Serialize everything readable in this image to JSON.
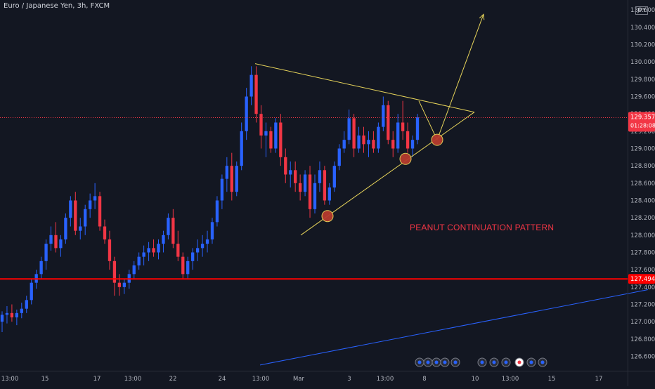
{
  "header": {
    "symbol_title": "Euro / Japanese Yen, 3h, FXCM",
    "currency_badge": "JPY"
  },
  "annotations": {
    "pattern_label": "PEANUT CONTINUATION PATTERN"
  },
  "price_axis": {
    "current_price": "129.357",
    "countdown": "01:28:08",
    "support_price": "127.494"
  },
  "colors": {
    "background": "#131722",
    "up_candle": "#2962ff",
    "down_candle": "#f23645",
    "support_line": "#ff0000",
    "trendline": "#e6d35a",
    "long_trendline": "#2962ff",
    "label_text": "#f23645",
    "marker_fill": "#b53a2e"
  },
  "chart_data": {
    "type": "candlestick",
    "title": "Euro / Japanese Yen, 3h, FXCM",
    "ylim": [
      126.45,
      130.65
    ],
    "y_ticks": [
      126.6,
      126.8,
      127.0,
      127.2,
      127.4,
      127.6,
      127.8,
      128.0,
      128.2,
      128.4,
      128.6,
      128.8,
      129.0,
      129.2,
      129.4,
      129.6,
      129.8,
      130.0,
      130.2,
      130.4,
      130.6
    ],
    "x_tick_labels": [
      "13:00",
      "15",
      "17",
      "13:00",
      "22",
      "24",
      "13:00",
      "Mar",
      "3",
      "13:00",
      "8",
      "10",
      "13:00",
      "15",
      "17"
    ],
    "current_price": 129.357,
    "horizontal_levels": [
      {
        "price": 127.494,
        "label": "127.494"
      }
    ],
    "pattern_label": "PEANUT CONTINUATION PATTERN",
    "ohlc": [
      [
        127.0,
        127.12,
        126.88,
        127.08
      ],
      [
        127.08,
        127.18,
        126.98,
        127.1
      ],
      [
        127.1,
        127.2,
        127.0,
        127.05
      ],
      [
        127.05,
        127.14,
        126.96,
        127.1
      ],
      [
        127.1,
        127.22,
        127.04,
        127.15
      ],
      [
        127.15,
        127.3,
        127.1,
        127.25
      ],
      [
        127.25,
        127.5,
        127.2,
        127.45
      ],
      [
        127.45,
        127.6,
        127.38,
        127.55
      ],
      [
        127.55,
        127.75,
        127.5,
        127.7
      ],
      [
        127.7,
        127.95,
        127.6,
        127.9
      ],
      [
        127.9,
        128.1,
        127.82,
        128.0
      ],
      [
        128.0,
        128.15,
        127.8,
        127.85
      ],
      [
        127.85,
        128.0,
        127.75,
        127.95
      ],
      [
        127.95,
        128.25,
        127.9,
        128.2
      ],
      [
        128.2,
        128.45,
        128.1,
        128.4
      ],
      [
        128.4,
        128.5,
        128.0,
        128.05
      ],
      [
        128.05,
        128.2,
        127.95,
        128.1
      ],
      [
        128.1,
        128.35,
        128.0,
        128.3
      ],
      [
        128.3,
        128.48,
        128.2,
        128.4
      ],
      [
        128.4,
        128.6,
        128.3,
        128.45
      ],
      [
        128.45,
        128.5,
        128.05,
        128.1
      ],
      [
        128.1,
        128.18,
        127.9,
        127.95
      ],
      [
        127.95,
        128.05,
        127.6,
        127.7
      ],
      [
        127.7,
        127.75,
        127.3,
        127.45
      ],
      [
        127.45,
        127.55,
        127.3,
        127.4
      ],
      [
        127.4,
        127.5,
        127.32,
        127.45
      ],
      [
        127.45,
        127.6,
        127.38,
        127.55
      ],
      [
        127.55,
        127.7,
        127.5,
        127.65
      ],
      [
        127.65,
        127.8,
        127.6,
        127.75
      ],
      [
        127.75,
        127.88,
        127.65,
        127.8
      ],
      [
        127.8,
        127.92,
        127.7,
        127.85
      ],
      [
        127.85,
        127.95,
        127.75,
        127.8
      ],
      [
        127.8,
        127.95,
        127.72,
        127.9
      ],
      [
        127.9,
        128.05,
        127.8,
        128.0
      ],
      [
        128.0,
        128.25,
        127.95,
        128.2
      ],
      [
        128.2,
        128.3,
        127.85,
        127.9
      ],
      [
        127.9,
        128.05,
        127.7,
        127.75
      ],
      [
        127.75,
        127.8,
        127.5,
        127.55
      ],
      [
        127.55,
        127.75,
        127.5,
        127.7
      ],
      [
        127.7,
        127.85,
        127.6,
        127.8
      ],
      [
        127.8,
        127.95,
        127.7,
        127.85
      ],
      [
        127.85,
        128.0,
        127.75,
        127.9
      ],
      [
        127.9,
        128.05,
        127.8,
        127.95
      ],
      [
        127.95,
        128.2,
        127.9,
        128.15
      ],
      [
        128.15,
        128.45,
        128.1,
        128.4
      ],
      [
        128.4,
        128.7,
        128.3,
        128.65
      ],
      [
        128.65,
        128.9,
        128.5,
        128.8
      ],
      [
        128.8,
        128.95,
        128.4,
        128.5
      ],
      [
        128.5,
        128.85,
        128.45,
        128.8
      ],
      [
        128.8,
        129.3,
        128.75,
        129.2
      ],
      [
        129.2,
        129.7,
        129.1,
        129.6
      ],
      [
        129.6,
        129.95,
        129.5,
        129.85
      ],
      [
        129.85,
        129.95,
        129.3,
        129.4
      ],
      [
        129.4,
        129.5,
        129.0,
        129.15
      ],
      [
        129.15,
        129.3,
        128.9,
        129.2
      ],
      [
        129.2,
        129.25,
        128.95,
        129.0
      ],
      [
        129.0,
        129.35,
        128.95,
        129.3
      ],
      [
        129.3,
        129.4,
        128.8,
        128.9
      ],
      [
        128.9,
        129.0,
        128.6,
        128.7
      ],
      [
        128.7,
        128.85,
        128.55,
        128.75
      ],
      [
        128.75,
        128.85,
        128.5,
        128.6
      ],
      [
        128.6,
        128.7,
        128.4,
        128.5
      ],
      [
        128.5,
        128.75,
        128.45,
        128.7
      ],
      [
        128.7,
        128.8,
        128.2,
        128.3
      ],
      [
        128.3,
        128.7,
        128.25,
        128.6
      ],
      [
        128.6,
        128.85,
        128.5,
        128.75
      ],
      [
        128.75,
        128.8,
        128.35,
        128.4
      ],
      [
        128.4,
        128.6,
        128.35,
        128.55
      ],
      [
        128.55,
        128.85,
        128.5,
        128.8
      ],
      [
        128.8,
        129.05,
        128.75,
        129.0
      ],
      [
        129.0,
        129.2,
        128.95,
        129.1
      ],
      [
        129.1,
        129.45,
        129.05,
        129.35
      ],
      [
        129.35,
        129.4,
        128.9,
        129.0
      ],
      [
        129.0,
        129.25,
        128.95,
        129.15
      ],
      [
        129.15,
        129.25,
        128.95,
        129.05
      ],
      [
        129.05,
        129.2,
        128.9,
        129.1
      ],
      [
        129.1,
        129.2,
        128.95,
        129.0
      ],
      [
        129.0,
        129.3,
        128.95,
        129.25
      ],
      [
        129.25,
        129.6,
        129.2,
        129.5
      ],
      [
        129.5,
        129.55,
        129.05,
        129.1
      ],
      [
        129.1,
        129.2,
        128.9,
        129.0
      ],
      [
        129.0,
        129.4,
        128.95,
        129.3
      ],
      [
        129.3,
        129.55,
        129.1,
        129.2
      ],
      [
        129.2,
        129.3,
        128.95,
        129.0
      ],
      [
        129.0,
        129.15,
        128.9,
        129.1
      ],
      [
        129.1,
        129.4,
        129.05,
        129.36
      ]
    ],
    "trendlines": [
      {
        "name": "triangle-upper",
        "from": [
          363,
          129.98
        ],
        "to": [
          675,
          129.42
        ]
      },
      {
        "name": "triangle-lower",
        "from": [
          428,
          128.0
        ],
        "to": [
          675,
          129.42
        ]
      },
      {
        "name": "projection-leg-1",
        "from": [
          596,
          129.55
        ],
        "to": [
          622,
          129.1
        ]
      },
      {
        "name": "projection-leg-2",
        "from": [
          622,
          129.1
        ],
        "to": [
          688,
          130.55
        ]
      },
      {
        "name": "long-rising-trend",
        "from": [
          370,
          126.5
        ],
        "to": [
          922,
          127.37
        ]
      }
    ],
    "markers": [
      {
        "name": "swing-low-1",
        "at": [
          466,
          128.22
        ]
      },
      {
        "name": "swing-low-2",
        "at": [
          577,
          128.88
        ]
      },
      {
        "name": "projected-low",
        "at": [
          622,
          129.1
        ]
      }
    ]
  }
}
